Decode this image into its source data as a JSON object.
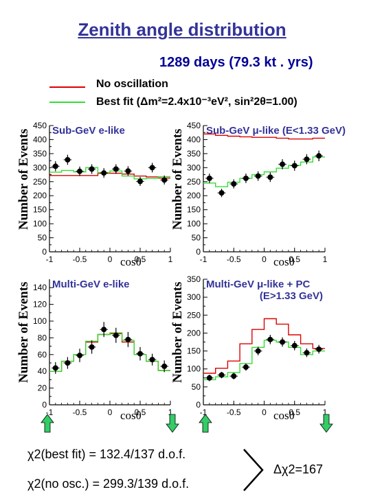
{
  "header": {
    "title": "Zenith angle distribution",
    "subtitle": "1289 days (79.3 kt . yrs)"
  },
  "legend": {
    "no_osc": "No oscillation",
    "best_fit": "Best fit (Δm²=2.4x10⁻³eV², sin²2θ=1.00)",
    "no_osc_color": "#dd0000",
    "best_fit_color": "#33dd33"
  },
  "summary": {
    "chi2_best": "χ2(best fit) = 132.4/137 d.o.f.",
    "chi2_noosc": "χ2(no osc.) = 299.3/139 d.o.f.",
    "delta_chi2": "Δχ2=167"
  },
  "chart_data": [
    {
      "type": "line",
      "title": "Sub-GeV e-like",
      "xlabel": "cosθ",
      "ylabel": "Number of Events",
      "xlim": [
        -1,
        1
      ],
      "ylim": [
        0,
        450
      ],
      "xticks": [
        -1,
        -0.5,
        0,
        0.5,
        1
      ],
      "xtick_labels": [
        "-1",
        "-0.5",
        "0",
        "0.5",
        "1"
      ],
      "yticks": [
        0,
        50,
        100,
        150,
        200,
        250,
        300,
        350,
        400,
        450
      ],
      "bin_edges": [
        -1,
        -0.8,
        -0.6,
        -0.4,
        -0.2,
        0,
        0.2,
        0.4,
        0.6,
        0.8,
        1
      ],
      "data_x": [
        -0.9,
        -0.7,
        -0.5,
        -0.3,
        -0.1,
        0.1,
        0.3,
        0.5,
        0.7,
        0.9
      ],
      "data_y": [
        305,
        328,
        287,
        295,
        281,
        295,
        288,
        251,
        300,
        256
      ],
      "data_err": [
        18,
        18,
        17,
        17,
        17,
        17,
        17,
        16,
        17,
        16
      ],
      "no_osc": [
        272,
        272,
        272,
        272,
        280,
        280,
        277,
        270,
        267,
        263
      ],
      "best_fit": [
        284,
        290,
        285,
        300,
        282,
        288,
        270,
        260,
        262,
        268
      ]
    },
    {
      "type": "line",
      "title": "Sub-GeV μ-like (E<1.33 GeV)",
      "xlabel": "cosθ",
      "ylabel": "Number of Events",
      "xlim": [
        -1,
        1
      ],
      "ylim": [
        0,
        450
      ],
      "xticks": [
        -1,
        -0.5,
        0,
        0.5,
        1
      ],
      "xtick_labels": [
        "-1",
        "-0.5",
        "0",
        "0.5",
        "1"
      ],
      "yticks": [
        0,
        50,
        100,
        150,
        200,
        250,
        300,
        350,
        400,
        450
      ],
      "bin_edges": [
        -1,
        -0.8,
        -0.6,
        -0.4,
        -0.2,
        0,
        0.2,
        0.4,
        0.6,
        0.8,
        1
      ],
      "data_x": [
        -0.9,
        -0.7,
        -0.5,
        -0.3,
        -0.1,
        0.1,
        0.3,
        0.5,
        0.7,
        0.9
      ],
      "data_y": [
        262,
        210,
        242,
        262,
        270,
        266,
        312,
        307,
        330,
        342
      ],
      "data_err": [
        17,
        15,
        16,
        17,
        17,
        17,
        18,
        18,
        18,
        19
      ],
      "no_osc": [
        420,
        415,
        412,
        410,
        408,
        408,
        405,
        402,
        402,
        405
      ],
      "best_fit": [
        245,
        232,
        248,
        262,
        275,
        285,
        298,
        308,
        320,
        338
      ]
    },
    {
      "type": "line",
      "title": "Multi-GeV e-like",
      "xlabel": "cosθ",
      "ylabel": "Number of Events",
      "xlim": [
        -1,
        1
      ],
      "ylim": [
        0,
        150
      ],
      "xticks": [
        -1,
        -0.5,
        0,
        0.5,
        1
      ],
      "xtick_labels": [
        "-1",
        "-0.5",
        "0",
        "0.5",
        "1"
      ],
      "yticks": [
        0,
        20,
        40,
        60,
        80,
        100,
        120,
        140
      ],
      "bin_edges": [
        -1,
        -0.8,
        -0.6,
        -0.4,
        -0.2,
        0,
        0.2,
        0.4,
        0.6,
        0.8,
        1
      ],
      "data_x": [
        -0.9,
        -0.7,
        -0.5,
        -0.3,
        -0.1,
        0.1,
        0.3,
        0.5,
        0.7,
        0.9
      ],
      "data_y": [
        44,
        50,
        59,
        69,
        90,
        83,
        78,
        61,
        54,
        46
      ],
      "data_err": [
        7,
        7,
        8,
        8,
        9,
        9,
        9,
        8,
        7,
        7
      ],
      "no_osc": [
        40,
        52,
        60,
        75,
        84,
        85,
        75,
        60,
        52,
        41
      ],
      "best_fit": [
        40,
        52,
        60,
        76,
        84,
        86,
        77,
        60,
        52,
        41
      ]
    },
    {
      "type": "line",
      "title": "Multi-GeV μ-like + PC (E>1.33 GeV)",
      "xlabel": "cosθ",
      "ylabel": "Number of Events",
      "xlim": [
        -1,
        1
      ],
      "ylim": [
        0,
        350
      ],
      "xticks": [
        -1,
        -0.5,
        0,
        0.5,
        1
      ],
      "xtick_labels": [
        "-1",
        "-0.5",
        "0",
        "0.5",
        "1"
      ],
      "yticks": [
        0,
        50,
        100,
        150,
        200,
        250,
        300,
        350
      ],
      "bin_edges": [
        -1,
        -0.8,
        -0.6,
        -0.4,
        -0.2,
        0,
        0.2,
        0.4,
        0.6,
        0.8,
        1
      ],
      "data_x": [
        -0.9,
        -0.7,
        -0.5,
        -0.3,
        -0.1,
        0.1,
        0.3,
        0.5,
        0.7,
        0.9
      ],
      "data_y": [
        75,
        83,
        80,
        105,
        150,
        182,
        175,
        165,
        145,
        155
      ],
      "data_err": [
        9,
        9,
        9,
        10,
        12,
        13,
        13,
        13,
        12,
        12
      ],
      "no_osc": [
        88,
        102,
        122,
        170,
        210,
        240,
        225,
        195,
        170,
        157
      ],
      "best_fit": [
        70,
        78,
        90,
        115,
        160,
        180,
        175,
        160,
        140,
        150
      ]
    }
  ]
}
